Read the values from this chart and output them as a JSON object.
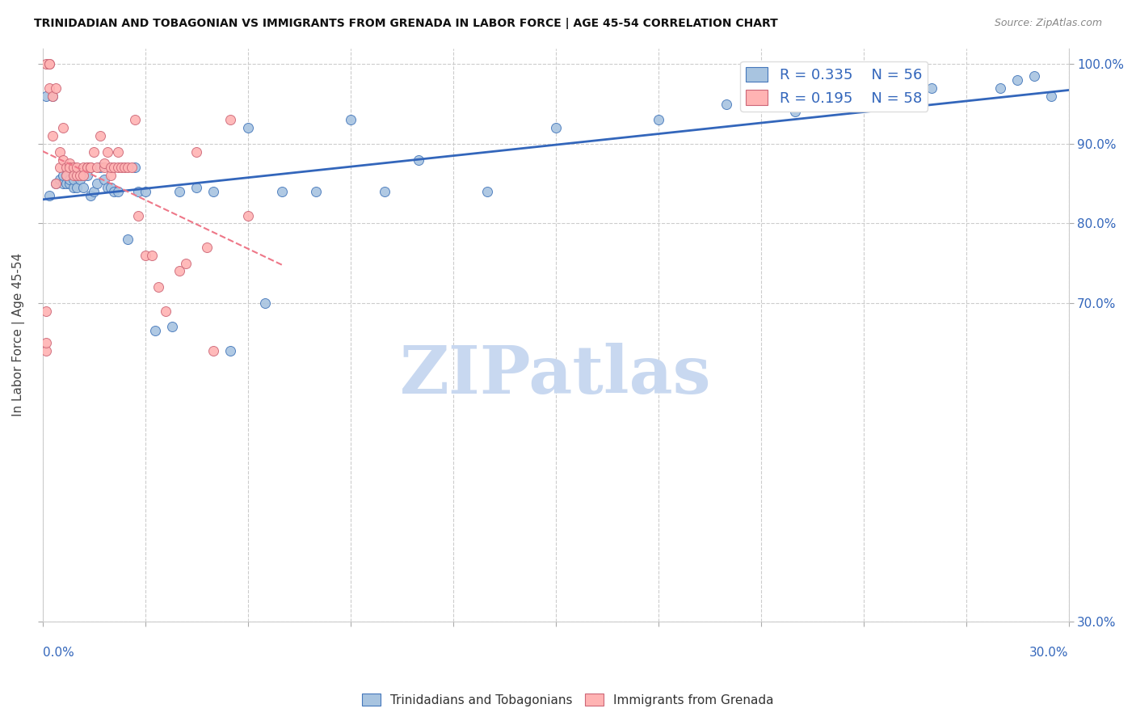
{
  "title": "TRINIDADIAN AND TOBAGONIAN VS IMMIGRANTS FROM GRENADA IN LABOR FORCE | AGE 45-54 CORRELATION CHART",
  "source": "Source: ZipAtlas.com",
  "ylabel": "In Labor Force | Age 45-54",
  "legend_blue_r": "0.335",
  "legend_blue_n": "56",
  "legend_pink_r": "0.195",
  "legend_pink_n": "58",
  "blue_color": "#A8C4E0",
  "blue_edge": "#4477BB",
  "pink_color": "#FFB3B3",
  "pink_edge": "#CC6677",
  "blue_line_color": "#3366BB",
  "pink_line_color": "#EE7788",
  "watermark_zip": "ZIP",
  "watermark_atlas": "atlas",
  "watermark_color": "#C8D8F0",
  "blue_x": [
    0.001,
    0.002,
    0.003,
    0.004,
    0.005,
    0.006,
    0.006,
    0.007,
    0.007,
    0.008,
    0.008,
    0.009,
    0.009,
    0.01,
    0.01,
    0.011,
    0.012,
    0.012,
    0.013,
    0.014,
    0.015,
    0.016,
    0.017,
    0.018,
    0.019,
    0.02,
    0.021,
    0.022,
    0.025,
    0.027,
    0.028,
    0.03,
    0.033,
    0.038,
    0.04,
    0.045,
    0.05,
    0.06,
    0.07,
    0.08,
    0.09,
    0.1,
    0.11,
    0.13,
    0.15,
    0.18,
    0.2,
    0.22,
    0.25,
    0.26,
    0.28,
    0.285,
    0.29,
    0.295,
    0.055,
    0.065
  ],
  "blue_y": [
    0.96,
    0.835,
    0.96,
    0.85,
    0.855,
    0.85,
    0.86,
    0.85,
    0.86,
    0.85,
    0.855,
    0.845,
    0.855,
    0.86,
    0.845,
    0.855,
    0.845,
    0.86,
    0.86,
    0.835,
    0.84,
    0.85,
    0.87,
    0.855,
    0.845,
    0.845,
    0.84,
    0.84,
    0.78,
    0.87,
    0.84,
    0.84,
    0.665,
    0.67,
    0.84,
    0.845,
    0.84,
    0.92,
    0.84,
    0.84,
    0.93,
    0.84,
    0.88,
    0.84,
    0.92,
    0.93,
    0.95,
    0.94,
    0.96,
    0.97,
    0.97,
    0.98,
    0.985,
    0.96,
    0.64,
    0.7
  ],
  "pink_x": [
    0.001,
    0.001,
    0.001,
    0.002,
    0.002,
    0.002,
    0.003,
    0.003,
    0.004,
    0.004,
    0.005,
    0.005,
    0.006,
    0.006,
    0.007,
    0.007,
    0.008,
    0.008,
    0.009,
    0.009,
    0.01,
    0.01,
    0.011,
    0.012,
    0.012,
    0.013,
    0.013,
    0.014,
    0.014,
    0.015,
    0.016,
    0.017,
    0.018,
    0.018,
    0.019,
    0.02,
    0.02,
    0.021,
    0.022,
    0.022,
    0.023,
    0.024,
    0.025,
    0.026,
    0.027,
    0.028,
    0.03,
    0.032,
    0.034,
    0.036,
    0.04,
    0.042,
    0.045,
    0.048,
    0.05,
    0.055,
    0.06,
    0.001
  ],
  "pink_y": [
    0.64,
    0.65,
    1.0,
    1.0,
    1.0,
    0.97,
    0.96,
    0.91,
    0.97,
    0.85,
    0.87,
    0.89,
    0.88,
    0.92,
    0.87,
    0.86,
    0.875,
    0.87,
    0.87,
    0.86,
    0.86,
    0.87,
    0.86,
    0.87,
    0.86,
    0.87,
    0.87,
    0.87,
    0.87,
    0.89,
    0.87,
    0.91,
    0.87,
    0.875,
    0.89,
    0.86,
    0.87,
    0.87,
    0.87,
    0.89,
    0.87,
    0.87,
    0.87,
    0.87,
    0.93,
    0.81,
    0.76,
    0.76,
    0.72,
    0.69,
    0.74,
    0.75,
    0.89,
    0.77,
    0.64,
    0.93,
    0.81,
    0.69
  ],
  "xmin": 0.0,
  "xmax": 0.3,
  "ymin": 0.3,
  "ymax": 1.02,
  "yticks": [
    0.3,
    0.7,
    0.8,
    0.9,
    1.0
  ],
  "ytick_labels": [
    "30.0%",
    "70.0%",
    "80.0%",
    "90.0%",
    "100.0%"
  ],
  "xtick_left_label": "0.0%",
  "xtick_right_label": "30.0%",
  "bottom_legend_labels": [
    "Trinidadians and Tobagonians",
    "Immigrants from Grenada"
  ]
}
